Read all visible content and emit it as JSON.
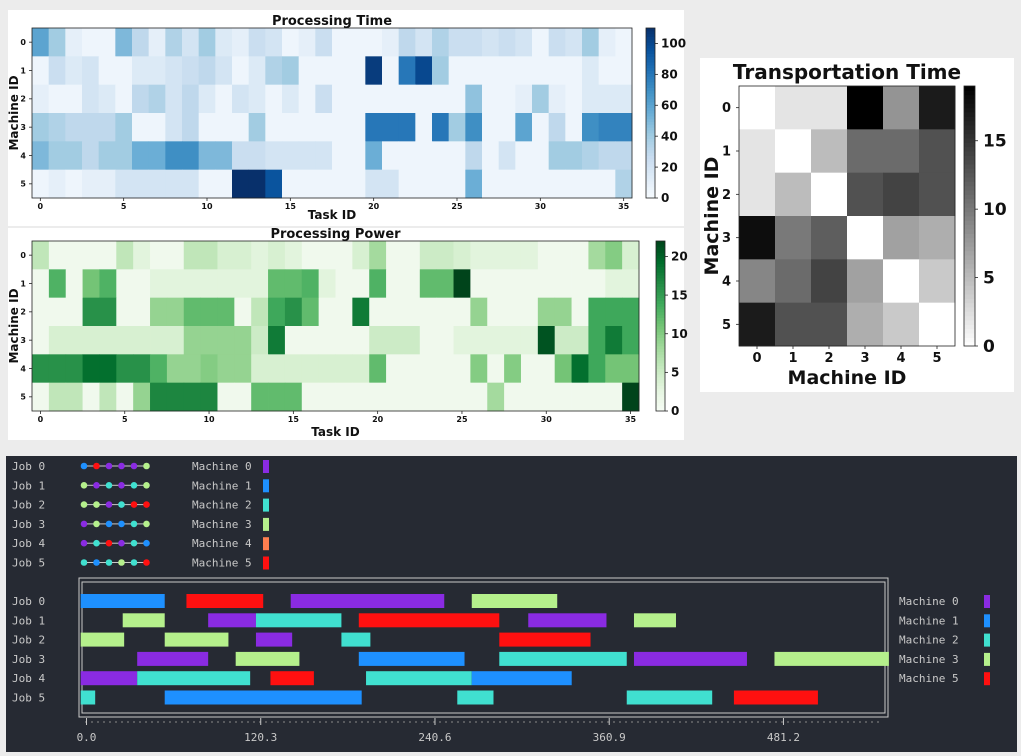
{
  "colors": {
    "terminal_bg": "#262a33",
    "terminal_text": "#c9c9c9",
    "M0": "#8a2be2",
    "M1": "#1e90ff",
    "M2": "#40e0d0",
    "M3": "#b5f08c",
    "M4": "#ff7f50",
    "M5": "#ff1010"
  },
  "chart_data": [
    {
      "type": "heatmap",
      "title": "Processing Time",
      "xlabel": "Task ID",
      "ylabel": "Machine ID",
      "colormap": "Blues",
      "vmin": 0,
      "vmax": 110,
      "x_ticks": [
        "0",
        "5",
        "10",
        "15",
        "20",
        "25",
        "30",
        "35"
      ],
      "y_ticks": [
        "0",
        "1",
        "2",
        "3",
        "4",
        "5"
      ],
      "colorbar_ticks": [
        "0",
        "20",
        "40",
        "60",
        "80",
        "100"
      ],
      "values": [
        [
          60,
          40,
          10,
          5,
          5,
          50,
          30,
          10,
          35,
          20,
          40,
          15,
          10,
          25,
          20,
          5,
          10,
          25,
          5,
          5,
          5,
          10,
          30,
          20,
          35,
          25,
          25,
          20,
          25,
          20,
          5,
          25,
          20,
          40,
          10,
          5
        ],
        [
          5,
          25,
          15,
          20,
          5,
          5,
          15,
          15,
          20,
          25,
          30,
          20,
          5,
          15,
          35,
          40,
          5,
          5,
          5,
          5,
          105,
          5,
          80,
          100,
          40,
          5,
          5,
          5,
          5,
          5,
          5,
          5,
          5,
          15,
          5,
          5
        ],
        [
          10,
          5,
          5,
          20,
          15,
          5,
          30,
          35,
          20,
          30,
          15,
          5,
          20,
          15,
          5,
          15,
          5,
          25,
          5,
          5,
          5,
          5,
          5,
          5,
          5,
          5,
          45,
          5,
          5,
          10,
          40,
          10,
          5,
          15,
          15,
          15
        ],
        [
          40,
          35,
          30,
          30,
          30,
          40,
          5,
          5,
          20,
          30,
          5,
          5,
          5,
          40,
          5,
          5,
          5,
          5,
          5,
          5,
          80,
          80,
          80,
          5,
          80,
          40,
          70,
          5,
          5,
          60,
          5,
          30,
          5,
          70,
          75,
          75
        ],
        [
          50,
          40,
          40,
          30,
          40,
          40,
          55,
          55,
          70,
          70,
          50,
          50,
          25,
          25,
          20,
          20,
          20,
          20,
          5,
          5,
          55,
          5,
          5,
          5,
          5,
          5,
          30,
          5,
          20,
          5,
          5,
          40,
          40,
          35,
          30,
          30
        ],
        [
          5,
          10,
          5,
          10,
          10,
          20,
          20,
          20,
          20,
          20,
          5,
          5,
          115,
          115,
          95,
          5,
          5,
          5,
          5,
          5,
          20,
          20,
          5,
          5,
          5,
          5,
          55,
          5,
          5,
          5,
          5,
          5,
          5,
          5,
          5,
          35
        ]
      ]
    },
    {
      "type": "heatmap",
      "title": "Processing Power",
      "xlabel": "Task ID",
      "ylabel": "Machine ID",
      "colormap": "Greens",
      "vmin": 0,
      "vmax": 22,
      "x_ticks": [
        "0",
        "5",
        "10",
        "15",
        "20",
        "25",
        "30",
        "35"
      ],
      "y_ticks": [
        "0",
        "1",
        "2",
        "3",
        "4",
        "5"
      ],
      "colorbar_ticks": [
        "0",
        "5",
        "10",
        "15",
        "20"
      ],
      "values": [
        [
          6,
          1,
          1,
          1,
          1,
          6,
          3,
          1,
          1,
          6,
          6,
          4,
          4,
          3,
          4,
          3,
          1,
          1,
          1,
          4,
          8,
          1,
          1,
          5,
          5,
          4,
          3,
          3,
          3,
          3,
          1,
          1,
          1,
          8,
          10,
          4
        ],
        [
          1,
          13,
          1,
          11,
          13,
          1,
          1,
          3,
          3,
          3,
          3,
          3,
          3,
          3,
          12,
          12,
          13,
          3,
          1,
          1,
          13,
          1,
          1,
          12,
          12,
          22,
          1,
          1,
          1,
          1,
          1,
          1,
          1,
          1,
          3,
          3
        ],
        [
          1,
          1,
          1,
          16,
          16,
          1,
          1,
          9,
          9,
          12,
          12,
          12,
          1,
          6,
          14,
          16,
          12,
          1,
          1,
          18,
          1,
          1,
          1,
          1,
          1,
          1,
          9,
          1,
          1,
          1,
          9,
          9,
          1,
          14,
          14,
          14
        ],
        [
          1,
          4,
          4,
          4,
          4,
          4,
          4,
          4,
          4,
          9,
          9,
          9,
          9,
          5,
          18,
          1,
          1,
          1,
          1,
          1,
          5,
          5,
          5,
          1,
          1,
          3,
          3,
          3,
          3,
          3,
          21,
          5,
          5,
          14,
          18,
          14
        ],
        [
          16,
          16,
          16,
          19,
          19,
          16,
          16,
          13,
          9,
          9,
          10,
          9,
          9,
          4,
          4,
          4,
          4,
          4,
          4,
          4,
          12,
          1,
          1,
          1,
          1,
          1,
          10,
          1,
          10,
          1,
          1,
          11,
          19,
          14,
          11,
          11
        ],
        [
          1,
          6,
          6,
          1,
          6,
          1,
          9,
          17,
          17,
          17,
          17,
          1,
          1,
          12,
          12,
          12,
          1,
          1,
          1,
          1,
          1,
          1,
          1,
          1,
          1,
          1,
          1,
          8,
          1,
          1,
          1,
          1,
          1,
          1,
          1,
          22
        ]
      ]
    },
    {
      "type": "heatmap",
      "title": "Transportation Time",
      "xlabel": "Machine ID",
      "ylabel": "Machine ID",
      "colormap": "Greys",
      "vmin": 0,
      "vmax": 19,
      "x_ticks": [
        "0",
        "1",
        "2",
        "3",
        "4",
        "5"
      ],
      "y_ticks": [
        "0",
        "1",
        "2",
        "3",
        "4",
        "5"
      ],
      "colorbar_ticks": [
        "0",
        "5",
        "10",
        "15"
      ],
      "values": [
        [
          0,
          2,
          2,
          19,
          8,
          17
        ],
        [
          2,
          0,
          5,
          11,
          11,
          13
        ],
        [
          2,
          5,
          0,
          13,
          14,
          13
        ],
        [
          18,
          10,
          12,
          0,
          7,
          6
        ],
        [
          9,
          11,
          14,
          7,
          0,
          4
        ],
        [
          17,
          13,
          13,
          6,
          4,
          0
        ]
      ]
    }
  ],
  "terminal": {
    "jobs": [
      {
        "label": "Job 0",
        "sequence": [
          "M1",
          "M5",
          "M0",
          "M0",
          "M0",
          "M3"
        ]
      },
      {
        "label": "Job 1",
        "sequence": [
          "M3",
          "M0",
          "M2",
          "M0",
          "M2",
          "M3"
        ]
      },
      {
        "label": "Job 2",
        "sequence": [
          "M3",
          "M3",
          "M0",
          "M2",
          "M5",
          "M5"
        ]
      },
      {
        "label": "Job 3",
        "sequence": [
          "M0",
          "M3",
          "M1",
          "M1",
          "M2",
          "M3"
        ]
      },
      {
        "label": "Job 4",
        "sequence": [
          "M0",
          "M2",
          "M5",
          "M0",
          "M2",
          "M1"
        ]
      },
      {
        "label": "Job 5",
        "sequence": [
          "M2",
          "M1",
          "M2",
          "M3",
          "M2",
          "M5"
        ]
      }
    ],
    "legend": [
      {
        "label": "Machine 0",
        "key": "M0"
      },
      {
        "label": "Machine 1",
        "key": "M1"
      },
      {
        "label": "Machine 2",
        "key": "M2"
      },
      {
        "label": "Machine 3",
        "key": "M3"
      },
      {
        "label": "Machine 4",
        "key": "M4"
      },
      {
        "label": "Machine 5",
        "key": "M5"
      }
    ],
    "gantt": {
      "type": "gantt",
      "rows": [
        "Job 0",
        "Job 1",
        "Job 2",
        "Job 3",
        "Job 4",
        "Job 5"
      ],
      "x_ticks": [
        "0.0",
        "120.3",
        "240.6",
        "360.9",
        "481.2"
      ],
      "xlim": [
        0,
        552
      ],
      "tasks": [
        {
          "job": 0,
          "m": "M1",
          "s": -4,
          "e": 54
        },
        {
          "job": 0,
          "m": "M5",
          "s": 69,
          "e": 122
        },
        {
          "job": 0,
          "m": "M0",
          "s": 141,
          "e": 247
        },
        {
          "job": 0,
          "m": "M3",
          "s": 266,
          "e": 325
        },
        {
          "job": 1,
          "m": "M3",
          "s": 25,
          "e": 54
        },
        {
          "job": 1,
          "m": "M0",
          "s": 84,
          "e": 117
        },
        {
          "job": 1,
          "m": "M2",
          "s": 117,
          "e": 176
        },
        {
          "job": 1,
          "m": "M5",
          "s": 188,
          "e": 285
        },
        {
          "job": 1,
          "m": "M0",
          "s": 305,
          "e": 359
        },
        {
          "job": 1,
          "m": "M3",
          "s": 378,
          "e": 407
        },
        {
          "job": 2,
          "m": "M3",
          "s": -4,
          "e": 26
        },
        {
          "job": 2,
          "m": "M3",
          "s": 54,
          "e": 98
        },
        {
          "job": 2,
          "m": "M0",
          "s": 117,
          "e": 142
        },
        {
          "job": 2,
          "m": "M2",
          "s": 176,
          "e": 196
        },
        {
          "job": 2,
          "m": "M5",
          "s": 285,
          "e": 348
        },
        {
          "job": 3,
          "m": "M0",
          "s": 35,
          "e": 84
        },
        {
          "job": 3,
          "m": "M3",
          "s": 103,
          "e": 147
        },
        {
          "job": 3,
          "m": "M1",
          "s": 188,
          "e": 261
        },
        {
          "job": 3,
          "m": "M2",
          "s": 285,
          "e": 373
        },
        {
          "job": 3,
          "m": "M0",
          "s": 378,
          "e": 456
        },
        {
          "job": 3,
          "m": "M3",
          "s": 475,
          "e": 554
        },
        {
          "job": 4,
          "m": "M0",
          "s": -4,
          "e": 35
        },
        {
          "job": 4,
          "m": "M2",
          "s": 35,
          "e": 113
        },
        {
          "job": 4,
          "m": "M5",
          "s": 127,
          "e": 157
        },
        {
          "job": 4,
          "m": "M2",
          "s": 193,
          "e": 266
        },
        {
          "job": 4,
          "m": "M1",
          "s": 266,
          "e": 335
        },
        {
          "job": 5,
          "m": "M2",
          "s": -4,
          "e": 6
        },
        {
          "job": 5,
          "m": "M1",
          "s": 54,
          "e": 190
        },
        {
          "job": 5,
          "m": "M2",
          "s": 256,
          "e": 281
        },
        {
          "job": 5,
          "m": "M2",
          "s": 373,
          "e": 432
        },
        {
          "job": 5,
          "m": "M5",
          "s": 447,
          "e": 505
        }
      ]
    },
    "gantt_legend": [
      {
        "label": "Machine 0",
        "key": "M0"
      },
      {
        "label": "Machine 1",
        "key": "M1"
      },
      {
        "label": "Machine 2",
        "key": "M2"
      },
      {
        "label": "Machine 3",
        "key": "M3"
      },
      {
        "label": "Machine 5",
        "key": "M5"
      }
    ]
  }
}
